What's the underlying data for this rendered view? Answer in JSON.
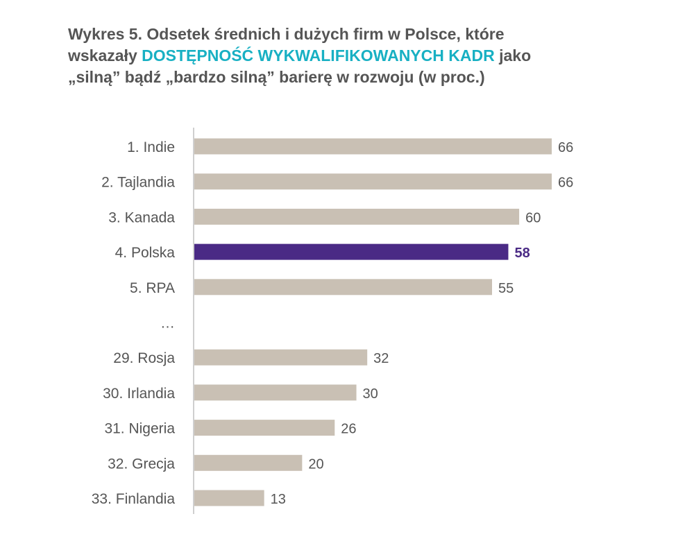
{
  "title": {
    "line1": "Wykres 5. Odsetek średnich i dużych firm w Polsce, które",
    "line2_pre": "wskazały ",
    "line2_highlight": "DOSTĘPNOŚĆ WYKWALIFIKOWANYCH KADR",
    "line2_post": " jako",
    "line3": "„silną” bądź „bardzo silną” barierę w rozwoju (w proc.)"
  },
  "colors": {
    "bar": "#c9c0b4",
    "highlight_bar": "#4a2a85",
    "highlight_title": "#18b0c3",
    "text": "#555555",
    "axis": "#cfcfcf"
  },
  "chart_data": {
    "type": "bar",
    "orientation": "horizontal",
    "categories": [
      "1. Indie",
      "2. Tajlandia",
      "3. Kanada",
      "4. Polska",
      "5. RPA",
      "…",
      "29. Rosja",
      "30. Irlandia",
      "31. Nigeria",
      "32. Grecja",
      "33. Finlandia"
    ],
    "values": [
      66,
      66,
      60,
      58,
      55,
      null,
      32,
      30,
      26,
      20,
      13
    ],
    "value_labels": [
      "66",
      "66",
      "60",
      "58",
      "55",
      "",
      "32",
      "30",
      "26",
      "20",
      "13"
    ],
    "highlighted_category": "4. Polska",
    "xlim": [
      0,
      66
    ],
    "grid": false,
    "legend": "none"
  }
}
